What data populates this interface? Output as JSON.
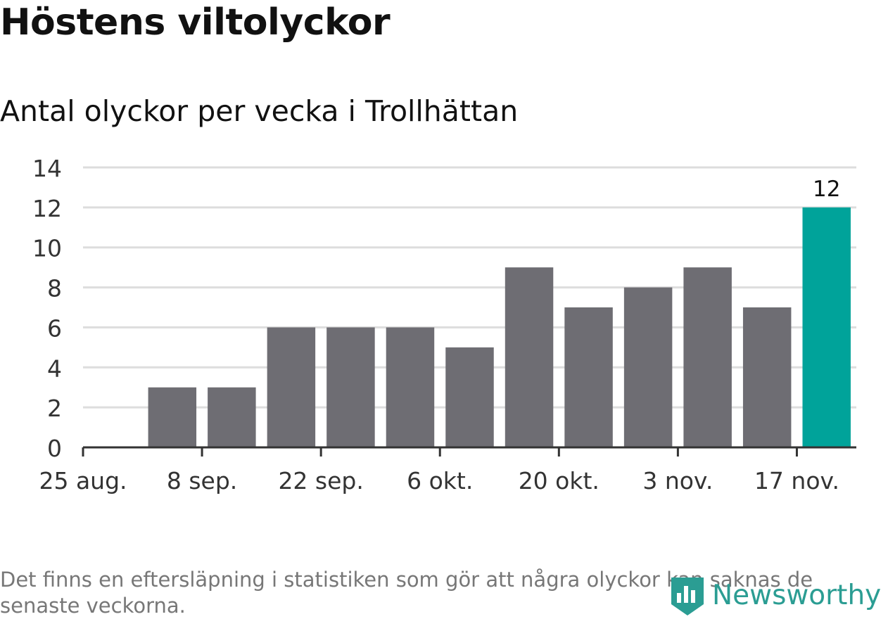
{
  "title": "Höstens viltolyckor",
  "subtitle": "Antal olyckor per vecka i Trollhättan",
  "footnote": "Det finns en eftersläpning i statistiken som gör att några olyckor kan saknas de senaste veckorna.",
  "brand": {
    "name": "Newsworthy",
    "icon": "newsworthy-logo-icon",
    "color": "#2b9d93"
  },
  "colors": {
    "bar": "#6e6d73",
    "highlight": "#00a39a",
    "grid": "#dddddd",
    "axis": "#333333"
  },
  "chart_data": {
    "type": "bar",
    "x_tick_labels": [
      "25 aug.",
      "8 sep.",
      "22 sep.",
      "6 okt.",
      "20 okt.",
      "3 nov.",
      "17 nov."
    ],
    "x_ticks": [
      "2014-08-25",
      "2014-09-08",
      "2014-09-22",
      "2014-10-06",
      "2014-10-20",
      "2014-11-03",
      "2014-11-17"
    ],
    "weeks": [
      "2014-09-01",
      "2014-09-08",
      "2014-09-15",
      "2014-09-22",
      "2014-09-29",
      "2014-10-06",
      "2014-10-13",
      "2014-10-20",
      "2014-10-27",
      "2014-11-03",
      "2014-11-10",
      "2014-11-17"
    ],
    "values": [
      3,
      3,
      6,
      6,
      6,
      5,
      9,
      7,
      8,
      9,
      7,
      12
    ],
    "highlight_index": 11,
    "data_labels": [
      {
        "index": 11,
        "text": "12"
      }
    ],
    "xlim": [
      "2014-08-25",
      "2014-11-24"
    ],
    "ylim": [
      0,
      14
    ],
    "y_ticks": [
      0,
      2,
      4,
      6,
      8,
      10,
      12,
      14
    ],
    "xlabel": "",
    "ylabel": "",
    "grid": true
  }
}
